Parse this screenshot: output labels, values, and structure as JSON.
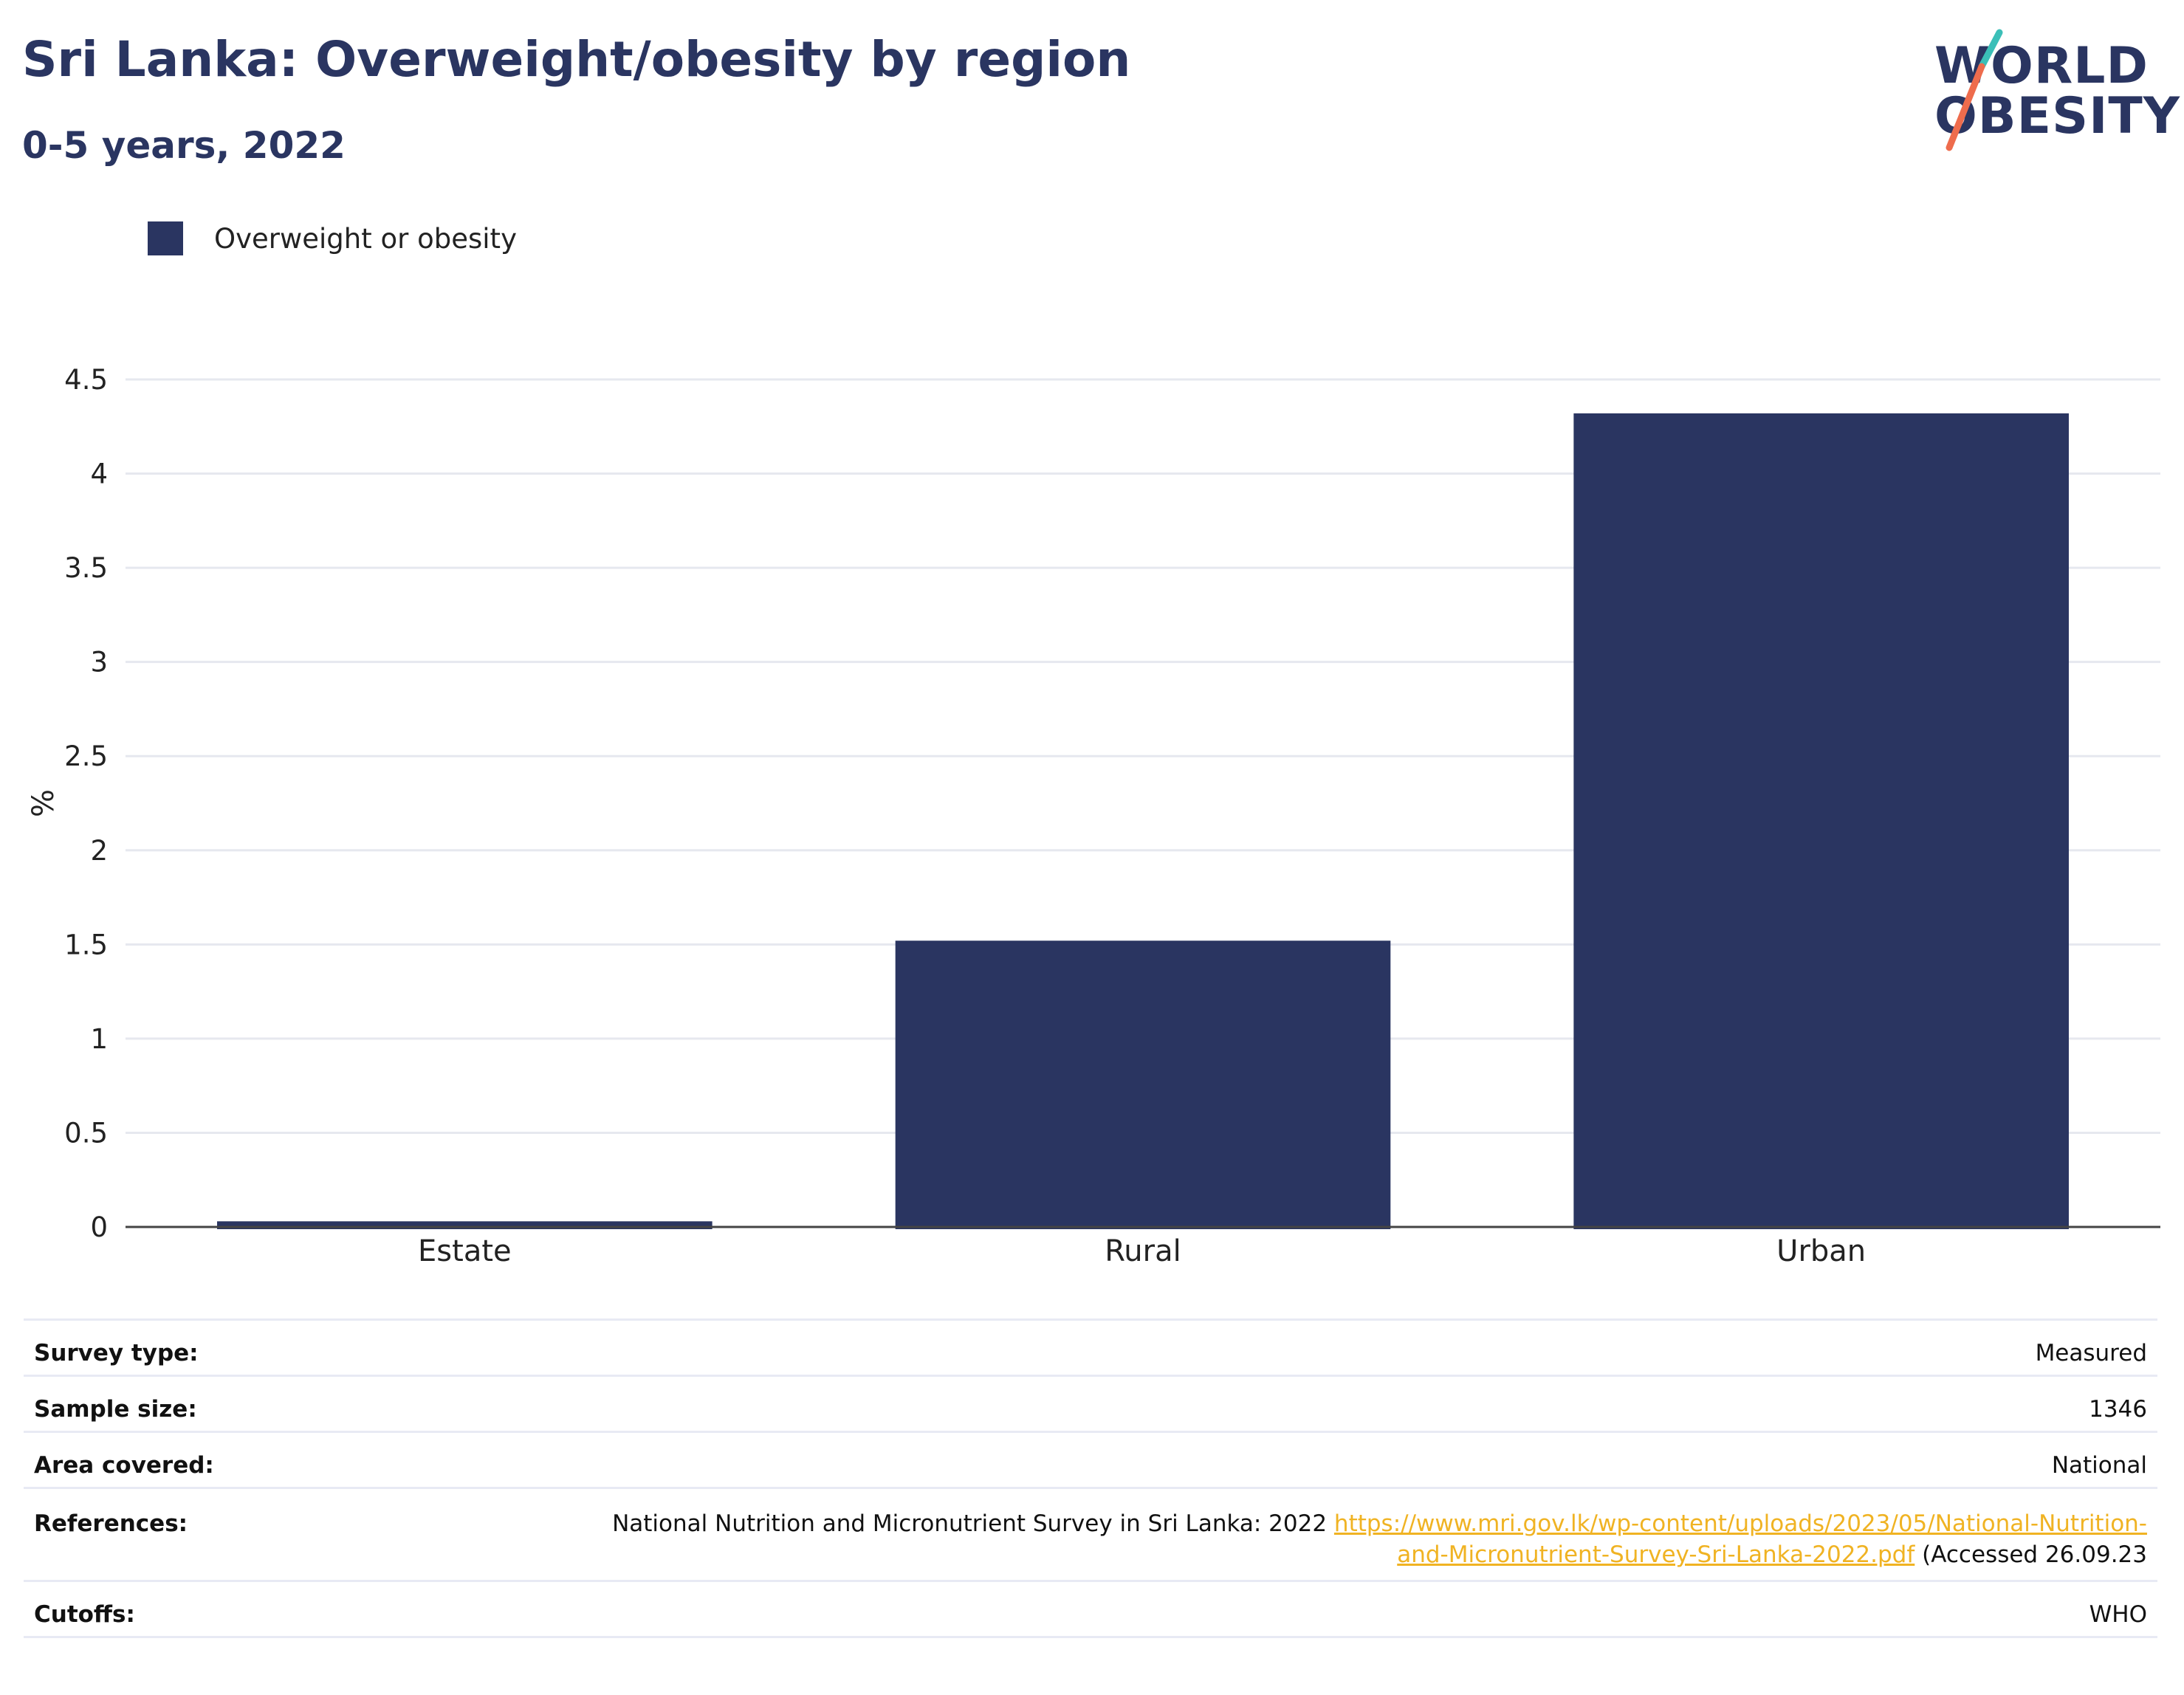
{
  "header": {
    "title": "Sri Lanka: Overweight/obesity by region",
    "subtitle": "0-5 years, 2022"
  },
  "logo": {
    "line1": "WORLD",
    "line2": "OBESITY",
    "colors": {
      "text": "#2a3561",
      "slash_top": "#3bbfb8",
      "slash_bottom": "#ee6c4d"
    }
  },
  "legend": {
    "label": "Overweight or obesity",
    "color": "#2a3561"
  },
  "chart_data": {
    "type": "bar",
    "categories": [
      "Estate",
      "Rural",
      "Urban"
    ],
    "series": [
      {
        "name": "Overweight or obesity",
        "values": [
          0.03,
          1.52,
          4.32
        ],
        "color": "#2a3561"
      }
    ],
    "ylabel": "%",
    "xlabel": "",
    "ylim": [
      0,
      4.5
    ],
    "yticks": [
      0,
      0.5,
      1,
      1.5,
      2,
      2.5,
      3,
      3.5,
      4,
      4.5
    ],
    "ytick_labels": [
      "0",
      "0.5",
      "1",
      "1.5",
      "2",
      "2.5",
      "3",
      "3.5",
      "4",
      "4.5"
    ],
    "grid": true,
    "legend_position": "top-left"
  },
  "info": {
    "survey_type": {
      "label": "Survey type:",
      "value": "Measured"
    },
    "sample_size": {
      "label": "Sample size:",
      "value": "1346"
    },
    "area_covered": {
      "label": "Area covered:",
      "value": "National"
    },
    "references": {
      "label": "References:",
      "text": "National Nutrition and Micronutrient Survey in Sri Lanka: 2022",
      "link_line1": "https://www.mri.gov.lk/wp-content/uploads/2023/05/National-Nutrition-",
      "link_line2": "and-Micronutrient-Survey-Sri-Lanka-2022.pdf",
      "suffix": "(Accessed 26.09.23"
    },
    "cutoffs": {
      "label": "Cutoffs:",
      "value": "WHO"
    }
  }
}
